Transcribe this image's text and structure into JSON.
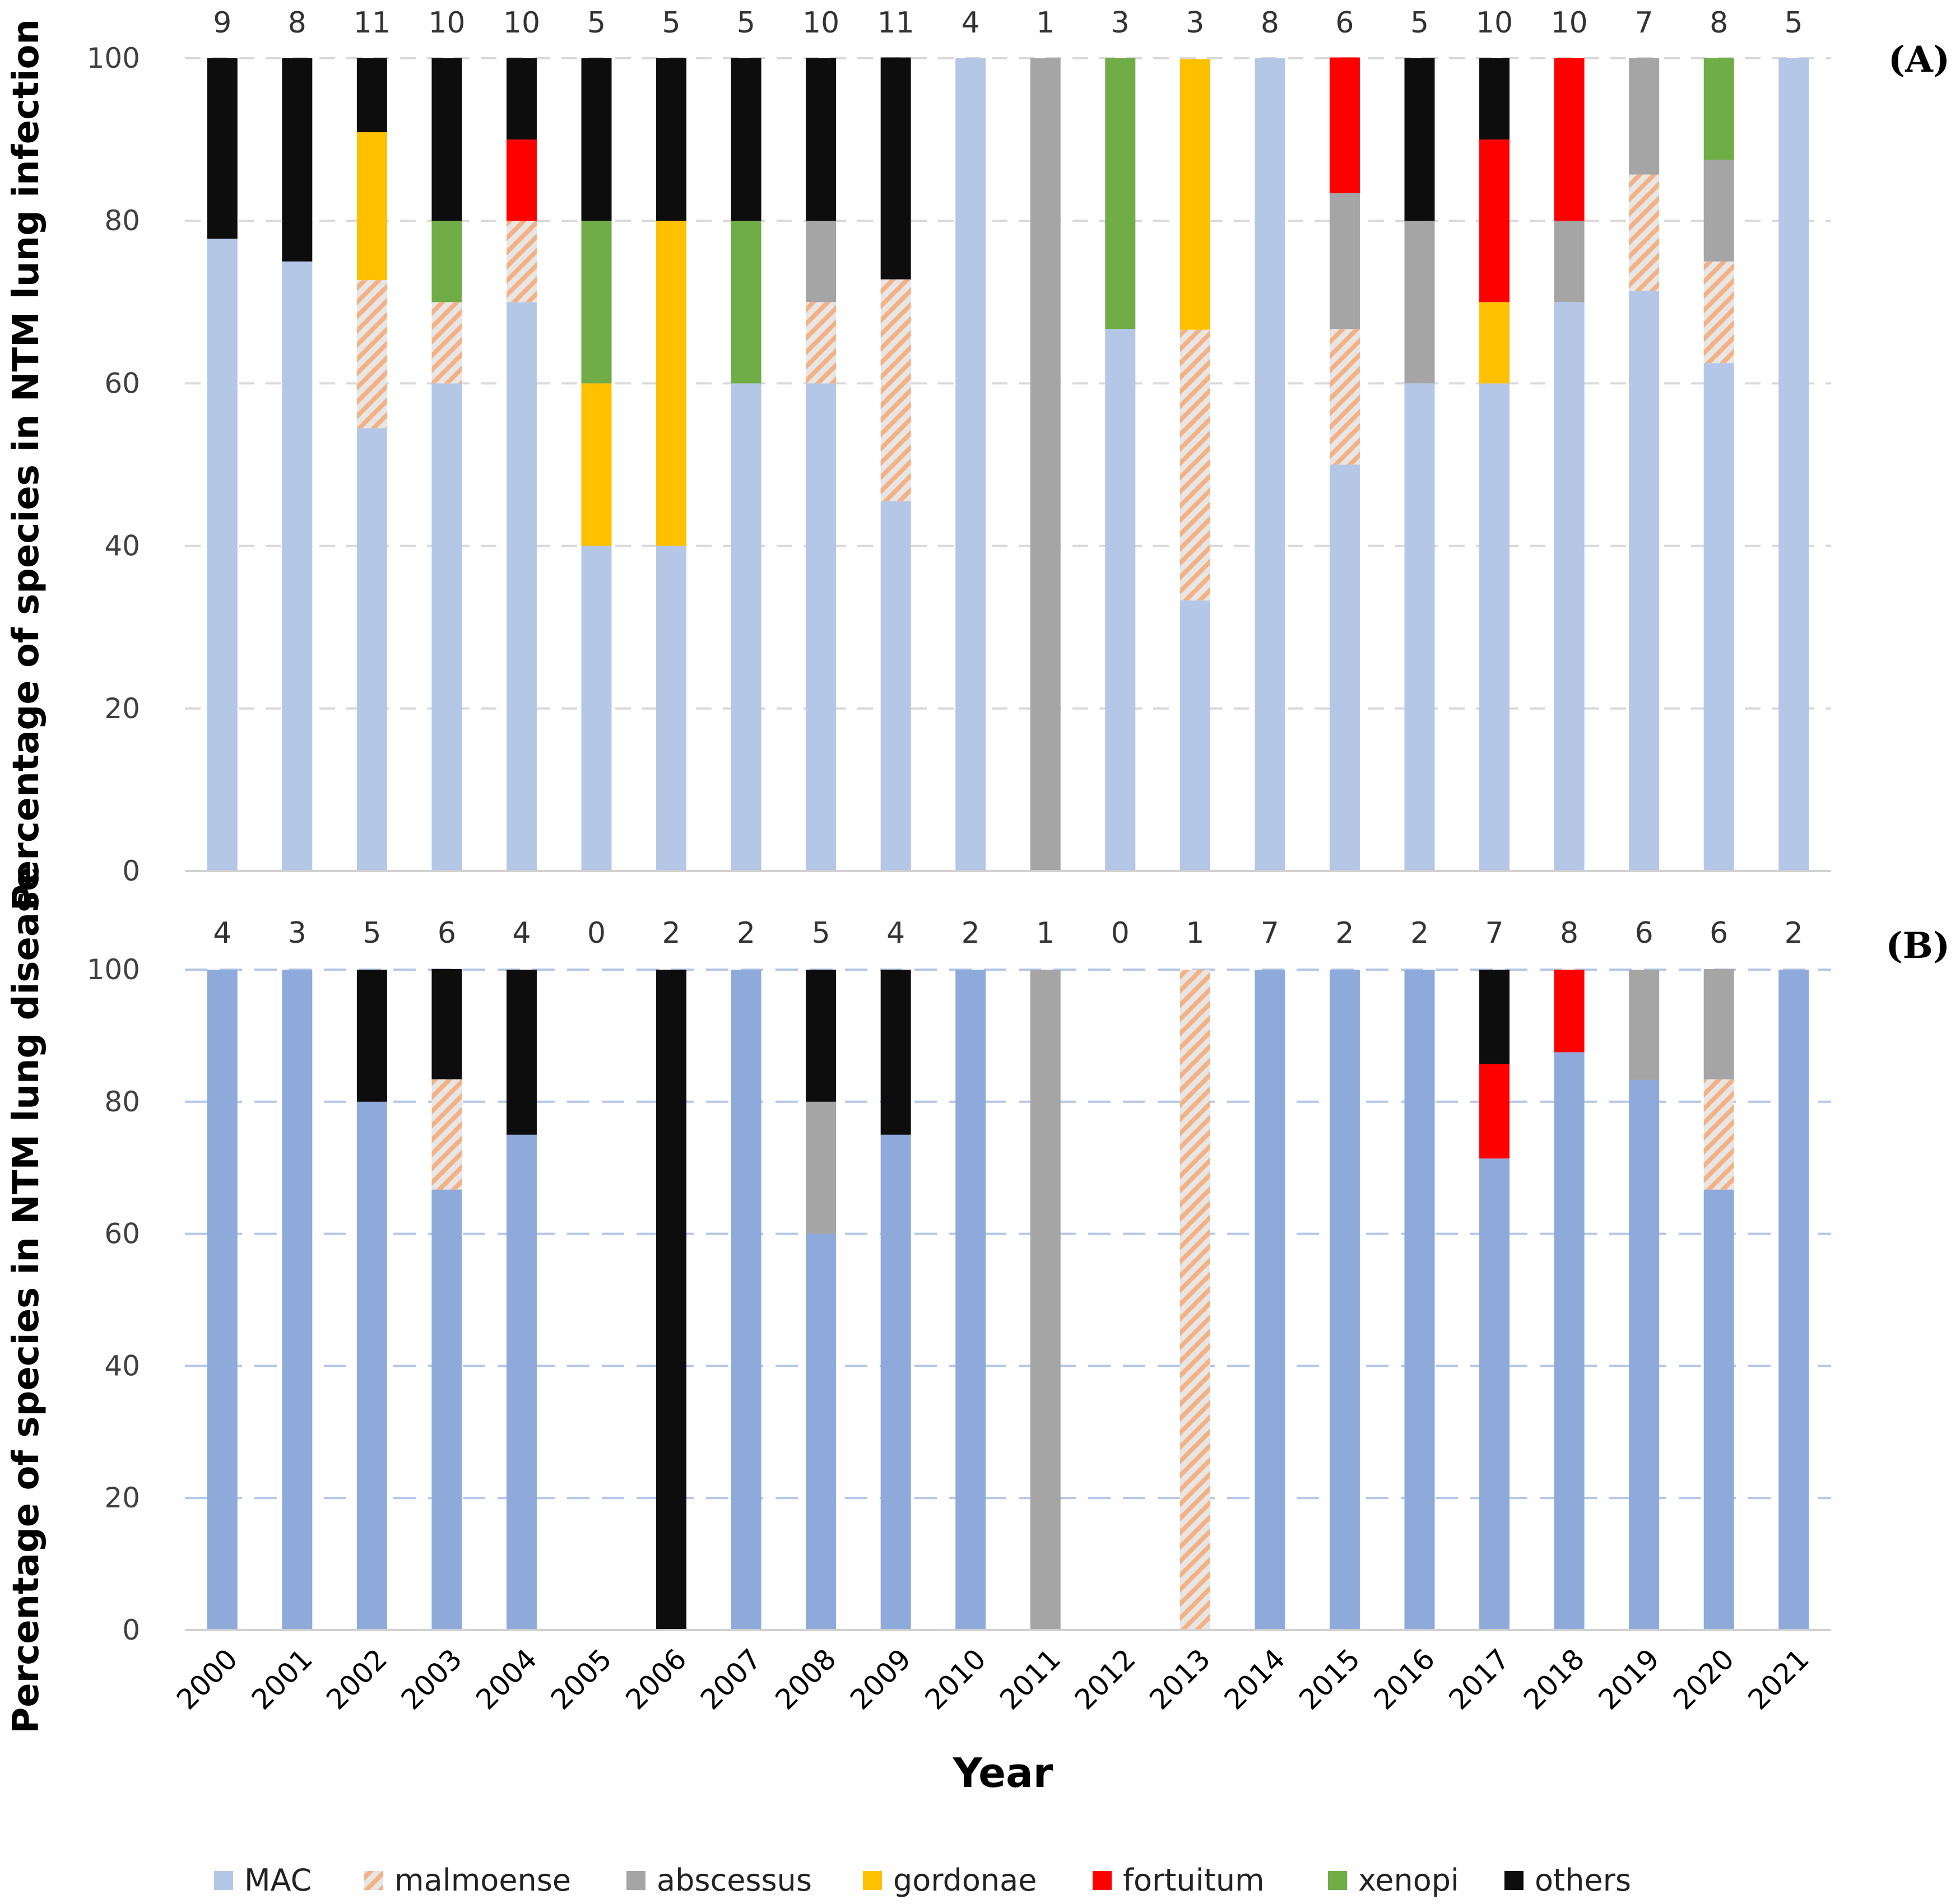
{
  "chart_data": {
    "type": "bar",
    "stacked": true,
    "xlabel": "Year",
    "categories": [
      "2000",
      "2001",
      "2002",
      "2003",
      "2004",
      "2005",
      "2006",
      "2007",
      "2008",
      "2009",
      "2010",
      "2011",
      "2012",
      "2013",
      "2014",
      "2015",
      "2016",
      "2017",
      "2018",
      "2019",
      "2020",
      "2021"
    ],
    "species": [
      "MAC",
      "malmoense",
      "abscessus",
      "gordonae",
      "fortuitum",
      "xenopi",
      "others"
    ],
    "colors": {
      "MAC_A": "#b4c7e7",
      "MAC_B": "#8eaadb",
      "malmoense_base": "#e7e6e6",
      "malmoense_stripe": "#f4b183",
      "abscessus": "#a5a5a5",
      "gordonae": "#ffc000",
      "fortuitum": "#ff0000",
      "xenopi": "#70ad47",
      "others": "#0d0d0d",
      "grid": "#d9d9d9",
      "grid_B": "#b4c7e7"
    },
    "legend": {
      "position": "bottom",
      "items": [
        {
          "key": "MAC",
          "label": "MAC"
        },
        {
          "key": "malmoense",
          "label": "malmoense"
        },
        {
          "key": "abscessus",
          "label": "abscessus"
        },
        {
          "key": "gordonae",
          "label": "gordonae"
        },
        {
          "key": "fortuitum",
          "label": "fortuitum"
        },
        {
          "key": "xenopi",
          "label": "xenopi"
        },
        {
          "key": "others",
          "label": "others"
        }
      ]
    },
    "panels": [
      {
        "id": "A",
        "panel_label": "(A)",
        "ylabel": "Percentage of species in NTM lung infection",
        "ylim": [
          0,
          100
        ],
        "yticks": [
          "0",
          "20",
          "40",
          "60",
          "80",
          "100"
        ],
        "counts": [
          "9",
          "8",
          "11",
          "10",
          "10",
          "5",
          "5",
          "5",
          "10",
          "11",
          "4",
          "1",
          "3",
          "3",
          "8",
          "6",
          "5",
          "10",
          "10",
          "7",
          "8",
          "5"
        ],
        "series": [
          {
            "name": "MAC",
            "values": [
              77.8,
              75,
              54.5,
              60,
              70,
              40,
              40,
              60,
              60,
              45.5,
              100,
              0,
              66.7,
              33.3,
              100,
              50,
              60,
              60,
              70,
              71.4,
              62.5,
              100
            ]
          },
          {
            "name": "malmoense",
            "values": [
              0,
              0,
              18.2,
              10,
              10,
              0,
              0,
              0,
              10,
              27.3,
              0,
              0,
              0,
              33.3,
              0,
              16.7,
              0,
              0,
              0,
              14.3,
              12.5,
              0
            ]
          },
          {
            "name": "abscessus",
            "values": [
              0,
              0,
              0,
              0,
              0,
              0,
              0,
              0,
              10,
              0,
              0,
              100,
              0,
              0,
              0,
              16.7,
              20,
              0,
              10,
              14.3,
              12.5,
              0
            ]
          },
          {
            "name": "gordonae",
            "values": [
              0,
              0,
              18.2,
              0,
              0,
              20,
              40,
              0,
              0,
              0,
              0,
              0,
              0,
              33.3,
              0,
              0,
              0,
              10,
              0,
              0,
              0,
              0
            ]
          },
          {
            "name": "fortuitum",
            "values": [
              0,
              0,
              0,
              0,
              10,
              0,
              0,
              0,
              0,
              0,
              0,
              0,
              0,
              0,
              0,
              16.7,
              0,
              20,
              20,
              0,
              0,
              0
            ]
          },
          {
            "name": "xenopi",
            "values": [
              0,
              0,
              0,
              10,
              0,
              20,
              0,
              20,
              0,
              0,
              0,
              0,
              33.3,
              0,
              0,
              0,
              0,
              0,
              0,
              0,
              12.5,
              0
            ]
          },
          {
            "name": "others",
            "values": [
              22.2,
              25,
              9.1,
              20,
              10,
              20,
              20,
              20,
              20,
              27.3,
              0,
              0,
              0,
              0,
              0,
              0,
              20,
              10,
              0,
              0,
              0,
              0
            ]
          }
        ]
      },
      {
        "id": "B",
        "panel_label": "(B)",
        "ylabel": "Percentage of species in NTM lung disease",
        "ylim": [
          0,
          100
        ],
        "yticks": [
          "0",
          "20",
          "40",
          "60",
          "80",
          "100"
        ],
        "counts": [
          "4",
          "3",
          "5",
          "6",
          "4",
          "0",
          "2",
          "2",
          "5",
          "4",
          "2",
          "1",
          "0",
          "1",
          "7",
          "2",
          "2",
          "7",
          "8",
          "6",
          "6",
          "2"
        ],
        "series": [
          {
            "name": "MAC",
            "values": [
              100,
              100,
              80,
              66.7,
              75,
              0,
              0,
              100,
              60,
              75,
              100,
              0,
              0,
              0,
              100,
              100,
              100,
              71.4,
              87.5,
              83.3,
              66.7,
              100
            ]
          },
          {
            "name": "malmoense",
            "values": [
              0,
              0,
              0,
              16.7,
              0,
              0,
              0,
              0,
              0,
              0,
              0,
              0,
              0,
              100,
              0,
              0,
              0,
              0,
              0,
              0,
              16.7,
              0
            ]
          },
          {
            "name": "abscessus",
            "values": [
              0,
              0,
              0,
              0,
              0,
              0,
              0,
              0,
              20,
              0,
              0,
              100,
              0,
              0,
              0,
              0,
              0,
              0,
              0,
              16.7,
              16.7,
              0
            ]
          },
          {
            "name": "gordonae",
            "values": [
              0,
              0,
              0,
              0,
              0,
              0,
              0,
              0,
              0,
              0,
              0,
              0,
              0,
              0,
              0,
              0,
              0,
              0,
              0,
              0,
              0,
              0
            ]
          },
          {
            "name": "fortuitum",
            "values": [
              0,
              0,
              0,
              0,
              0,
              0,
              0,
              0,
              0,
              0,
              0,
              0,
              0,
              0,
              0,
              0,
              0,
              14.3,
              12.5,
              0,
              0,
              0
            ]
          },
          {
            "name": "xenopi",
            "values": [
              0,
              0,
              0,
              0,
              0,
              0,
              0,
              0,
              0,
              0,
              0,
              0,
              0,
              0,
              0,
              0,
              0,
              0,
              0,
              0,
              0,
              0
            ]
          },
          {
            "name": "others",
            "values": [
              0,
              0,
              20,
              16.7,
              25,
              0,
              100,
              0,
              20,
              25,
              0,
              0,
              0,
              0,
              0,
              0,
              0,
              14.3,
              0,
              0,
              0,
              0
            ]
          }
        ]
      }
    ]
  }
}
